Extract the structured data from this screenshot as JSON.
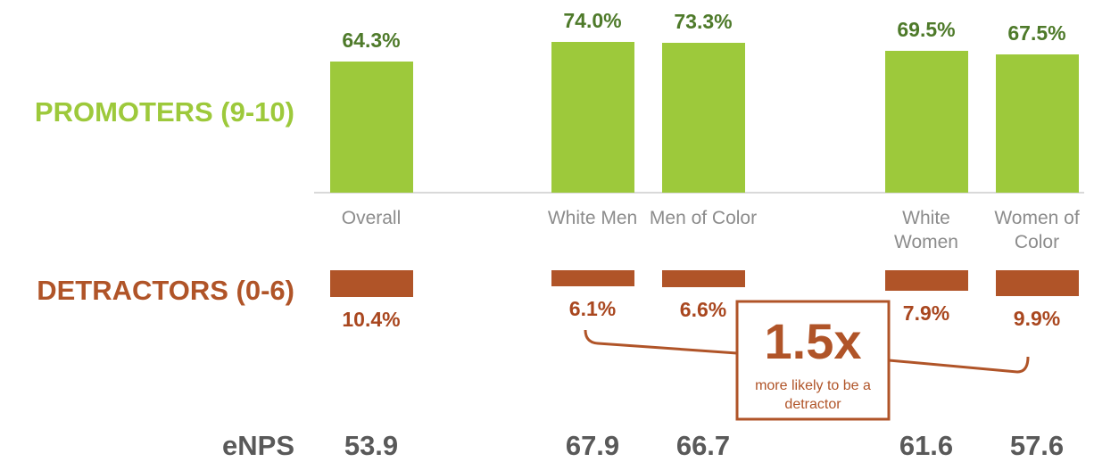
{
  "chart_data": {
    "type": "bar",
    "categories": [
      "Overall",
      "White Men",
      "Men of Color",
      "White Women",
      "Women of Color"
    ],
    "series": [
      {
        "name": "PROMOTERS (9-10)",
        "color": "#9dc93b",
        "values": [
          64.3,
          74.0,
          73.3,
          69.5,
          67.5
        ],
        "value_labels": [
          "64.3%",
          "74.0%",
          "73.3%",
          "69.5%",
          "67.5%"
        ]
      },
      {
        "name": "DETRACTORS (0-6)",
        "color": "#b05428",
        "values": [
          10.4,
          6.1,
          6.6,
          7.9,
          9.9
        ],
        "value_labels": [
          "10.4%",
          "6.1%",
          "6.6%",
          "7.9%",
          "9.9%"
        ]
      },
      {
        "name": "eNPS",
        "values": [
          53.9,
          67.9,
          66.7,
          61.6,
          57.6
        ]
      }
    ],
    "annotation": {
      "title": "1.5x",
      "text": "more likely to be a detractor"
    }
  }
}
